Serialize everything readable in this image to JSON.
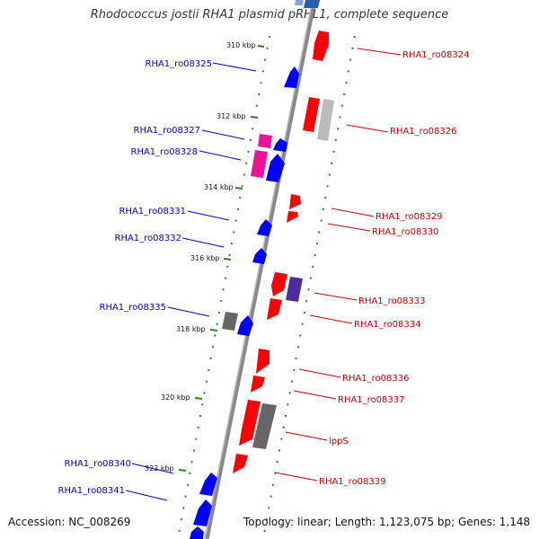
{
  "header": {
    "title": "Rhodococcus jostii RHA1 plasmid pRHL1, complete sequence"
  },
  "footer": {
    "accession": "Accession: NC_008269",
    "topology": "Topology: linear; Length: 1,123,075 bp; Genes: 1,148"
  },
  "ticks": [
    "310 kbp",
    "312 kbp",
    "314 kbp",
    "316 kbp",
    "318 kbp",
    "320 kbp",
    "322 kbp"
  ],
  "genes_left": [
    {
      "label": "RHA1_ro08325",
      "color": "#0000cc"
    },
    {
      "label": "RHA1_ro08327",
      "color": "#0000cc"
    },
    {
      "label": "RHA1_ro08328",
      "color": "#0000cc"
    },
    {
      "label": "RHA1_ro08331",
      "color": "#0000cc"
    },
    {
      "label": "RHA1_ro08332",
      "color": "#0000cc"
    },
    {
      "label": "RHA1_ro08335",
      "color": "#0000cc"
    },
    {
      "label": "RHA1_ro08340",
      "color": "#0000cc"
    },
    {
      "label": "RHA1_ro08341",
      "color": "#0000cc"
    }
  ],
  "genes_right": [
    {
      "label": "RHA1_ro08324",
      "color": "#cc0000"
    },
    {
      "label": "RHA1_ro08326",
      "color": "#cc0000"
    },
    {
      "label": "RHA1_ro08329",
      "color": "#cc0000"
    },
    {
      "label": "RHA1_ro08330",
      "color": "#cc0000"
    },
    {
      "label": "RHA1_ro08333",
      "color": "#cc0000"
    },
    {
      "label": "RHA1_ro08334",
      "color": "#cc0000"
    },
    {
      "label": "RHA1_ro08336",
      "color": "#cc0000"
    },
    {
      "label": "RHA1_ro08337",
      "color": "#cc0000"
    },
    {
      "label": "lppS",
      "color": "#cc0000"
    },
    {
      "label": "RHA1_ro08339",
      "color": "#cc0000"
    }
  ],
  "colors": {
    "forward_strand": "#ff0000",
    "reverse_strand": "#0000ff",
    "pink_gene": "#ee1199",
    "gray_gene": "#666666",
    "light_gray_gene": "#bbbbbb",
    "purple_gene": "#4b2e9c",
    "tick_mark": "#2f7f1f",
    "backbone": "#888888"
  }
}
